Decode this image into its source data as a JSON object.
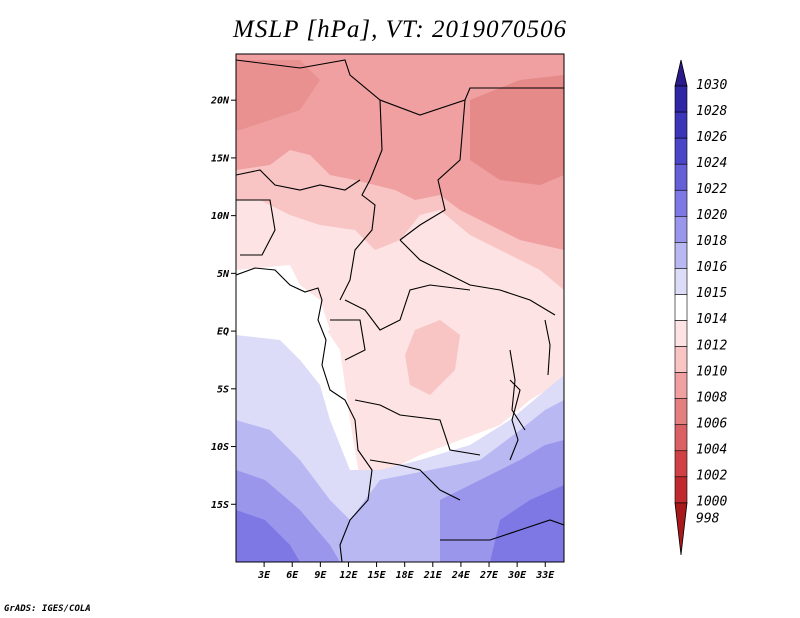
{
  "title": "MSLP [hPa], VT: 2019070506",
  "credit": "GrADS: IGES/COLA",
  "map": {
    "region": "Central Africa",
    "lat_range": [
      -20,
      24
    ],
    "lon_range": [
      0,
      35
    ],
    "lat_ticks": [
      {
        "lat": 20,
        "label": "20N"
      },
      {
        "lat": 15,
        "label": "15N"
      },
      {
        "lat": 10,
        "label": "10N"
      },
      {
        "lat": 5,
        "label": "5N"
      },
      {
        "lat": 0,
        "label": "EQ"
      },
      {
        "lat": -5,
        "label": "5S"
      },
      {
        "lat": -10,
        "label": "10S"
      },
      {
        "lat": -15,
        "label": "15S"
      }
    ],
    "lon_ticks": [
      {
        "lon": 3,
        "label": "3E"
      },
      {
        "lon": 6,
        "label": "6E"
      },
      {
        "lon": 9,
        "label": "9E"
      },
      {
        "lon": 12,
        "label": "12E"
      },
      {
        "lon": 15,
        "label": "15E"
      },
      {
        "lon": 18,
        "label": "18E"
      },
      {
        "lon": 21,
        "label": "21E"
      },
      {
        "lon": 24,
        "label": "24E"
      },
      {
        "lon": 27,
        "label": "27E"
      },
      {
        "lon": 30,
        "label": "30E"
      },
      {
        "lon": 33,
        "label": "33E"
      }
    ]
  },
  "colorbar": {
    "levels": [
      {
        "label": "1030",
        "color": "#2a1a8c"
      },
      {
        "label": "1028",
        "color": "#2f26a5"
      },
      {
        "label": "1026",
        "color": "#3b35b8"
      },
      {
        "label": "1024",
        "color": "#4b46c8"
      },
      {
        "label": "1022",
        "color": "#6560d8"
      },
      {
        "label": "1020",
        "color": "#7d78e4"
      },
      {
        "label": "1018",
        "color": "#9a96ec"
      },
      {
        "label": "1016",
        "color": "#bab8f3"
      },
      {
        "label": "1015",
        "color": "#dcdcf8"
      },
      {
        "label": "1014",
        "color": "#ffffff"
      },
      {
        "label": "1012",
        "color": "#fde3e3"
      },
      {
        "label": "1010",
        "color": "#f8c4c4"
      },
      {
        "label": "1008",
        "color": "#f0a0a0"
      },
      {
        "label": "1006",
        "color": "#e47f80"
      },
      {
        "label": "1004",
        "color": "#da6063"
      },
      {
        "label": "1002",
        "color": "#d04145"
      },
      {
        "label": "1000",
        "color": "#c02a2e"
      },
      {
        "label": "998",
        "color": "#a8191c"
      }
    ]
  }
}
